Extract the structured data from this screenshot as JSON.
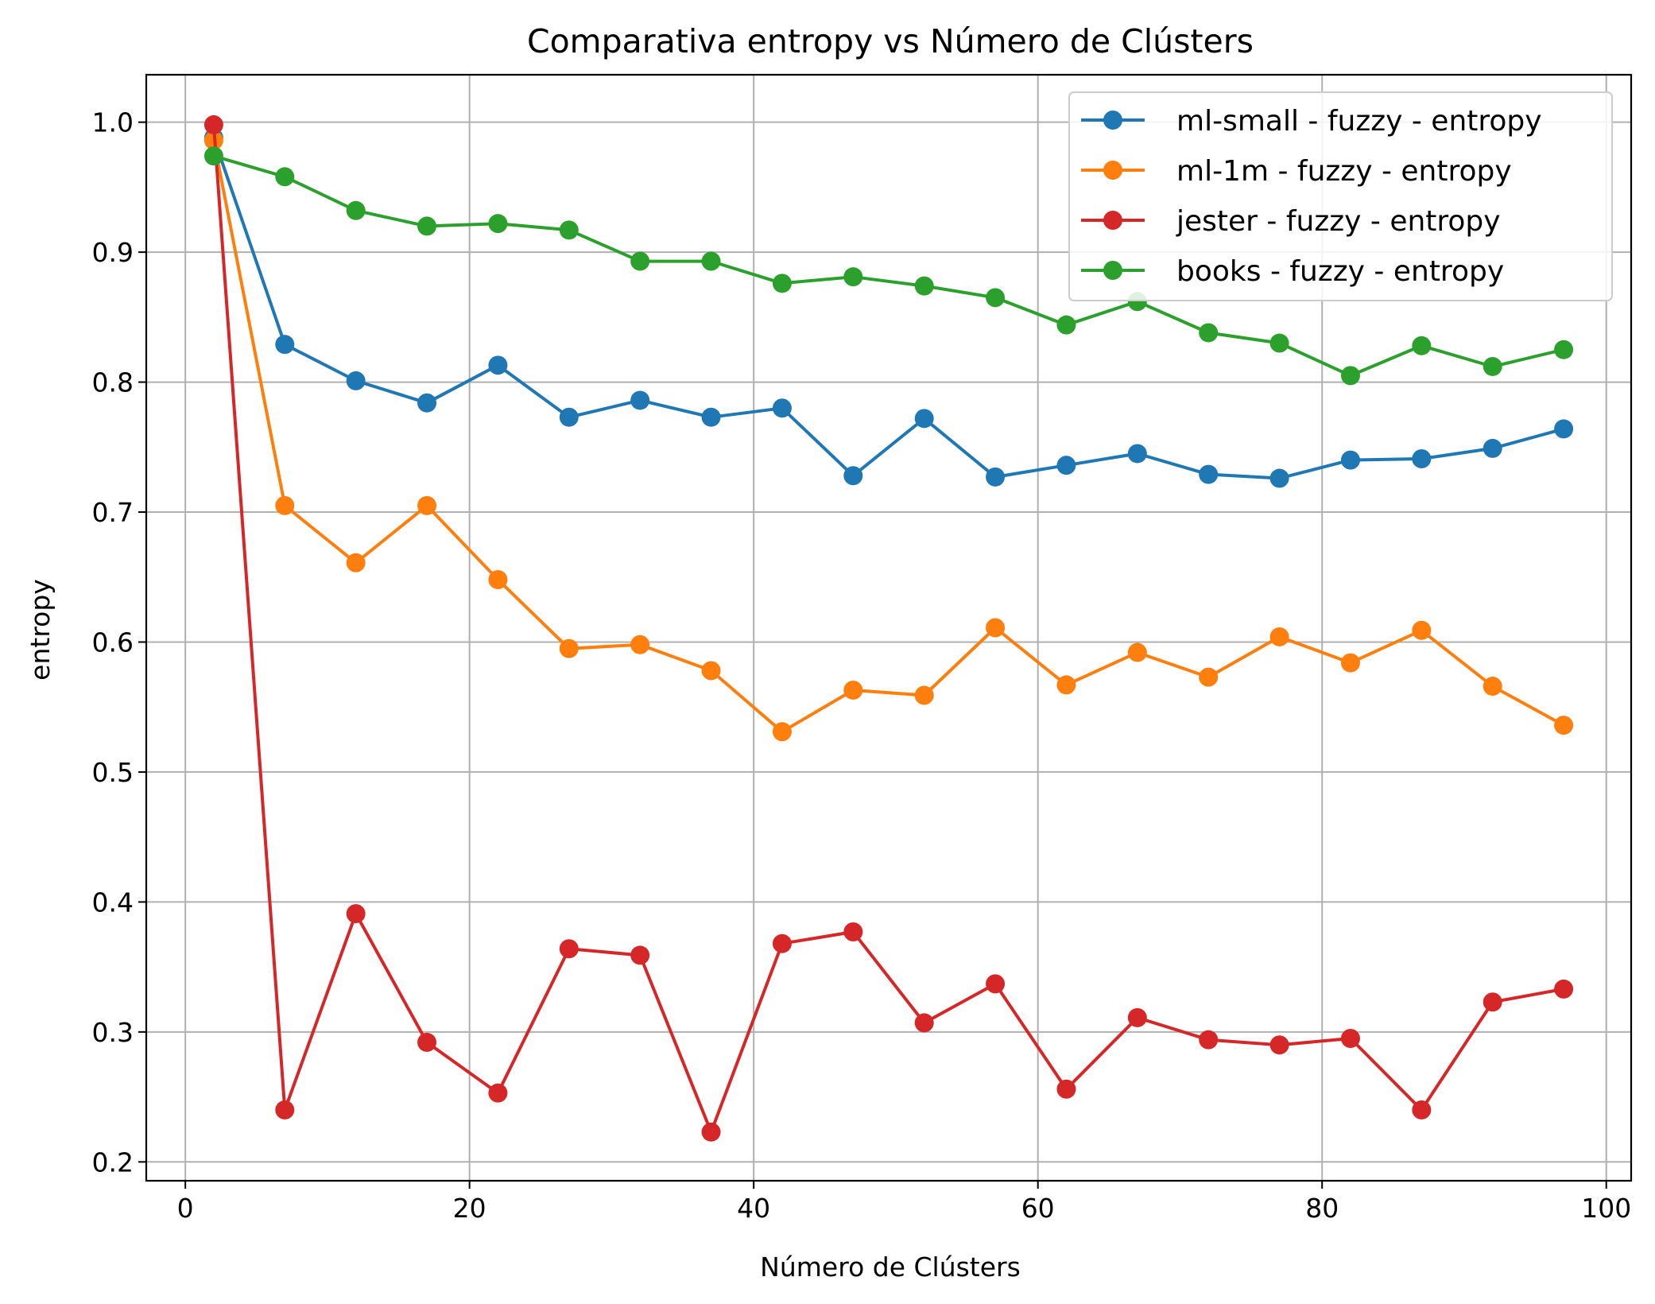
{
  "chart_data": {
    "type": "line",
    "title": "Comparativa entropy vs Número de Clústers",
    "xlabel": "Número de Clústers",
    "ylabel": "entropy",
    "xlim": [
      -2.75,
      101.75
    ],
    "ylim": [
      0.1855,
      1.0365
    ],
    "xticks": [
      0,
      20,
      40,
      60,
      80,
      100
    ],
    "yticks": [
      0.2,
      0.3,
      0.4,
      0.5,
      0.6,
      0.7,
      0.8,
      0.9,
      1.0
    ],
    "xtick_labels": [
      "0",
      "20",
      "40",
      "60",
      "80",
      "100"
    ],
    "ytick_labels": [
      "0.2",
      "0.3",
      "0.4",
      "0.5",
      "0.6",
      "0.7",
      "0.8",
      "0.9",
      "1.0"
    ],
    "grid": true,
    "legend_position": "top-right",
    "x": [
      2,
      7,
      12,
      17,
      22,
      27,
      32,
      37,
      42,
      47,
      52,
      57,
      62,
      67,
      72,
      77,
      82,
      87,
      92,
      97
    ],
    "series": [
      {
        "name": "ml-small - fuzzy - entropy",
        "color": "#1f77b4",
        "values": [
          0.988,
          0.829,
          0.801,
          0.784,
          0.813,
          0.773,
          0.786,
          0.773,
          0.78,
          0.728,
          0.772,
          0.727,
          0.736,
          0.745,
          0.729,
          0.726,
          0.74,
          0.741,
          0.749,
          0.764
        ]
      },
      {
        "name": "ml-1m - fuzzy - entropy",
        "color": "#ff7f0e",
        "values": [
          0.986,
          0.705,
          0.661,
          0.705,
          0.648,
          0.595,
          0.598,
          0.578,
          0.531,
          0.563,
          0.559,
          0.611,
          0.567,
          0.592,
          0.573,
          0.604,
          0.584,
          0.609,
          0.566,
          0.536
        ]
      },
      {
        "name": "jester - fuzzy - entropy",
        "color": "#d62728",
        "values": [
          0.998,
          0.24,
          0.391,
          0.292,
          0.253,
          0.364,
          0.359,
          0.223,
          0.368,
          0.377,
          0.307,
          0.337,
          0.256,
          0.311,
          0.294,
          0.29,
          0.295,
          0.24,
          0.323,
          0.333
        ]
      },
      {
        "name": "books - fuzzy - entropy",
        "color": "#2ca02c",
        "values": [
          0.974,
          0.958,
          0.932,
          0.92,
          0.922,
          0.917,
          0.893,
          0.893,
          0.876,
          0.881,
          0.874,
          0.865,
          0.844,
          0.862,
          0.838,
          0.83,
          0.805,
          0.828,
          0.812,
          0.825
        ]
      }
    ]
  }
}
